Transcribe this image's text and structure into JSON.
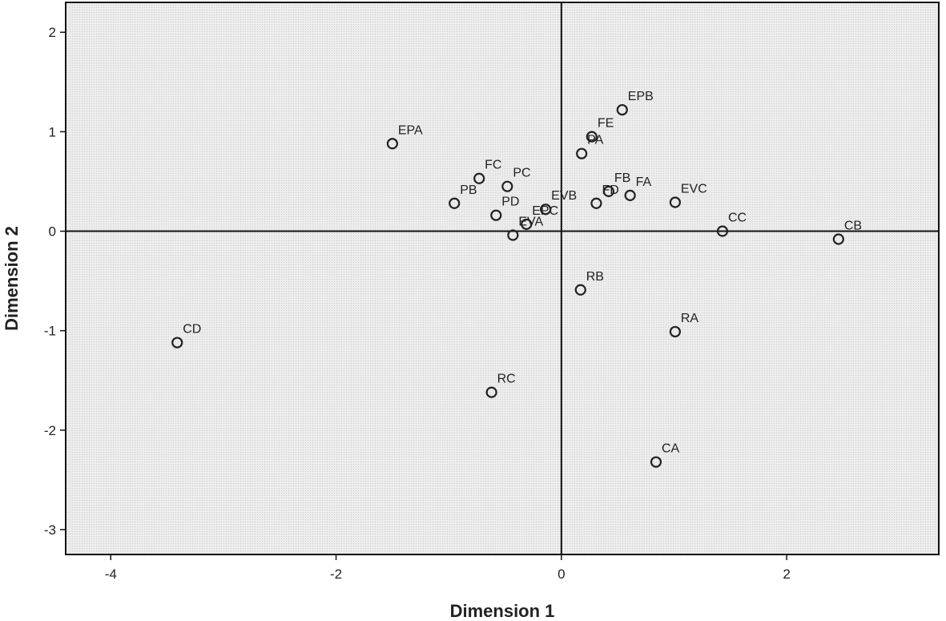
{
  "chart_data": {
    "type": "scatter",
    "title": "",
    "xlabel": "Dimension 1",
    "ylabel": "Dimension 2",
    "xlim": [
      -4.4,
      3.35
    ],
    "ylim": [
      -3.25,
      2.3
    ],
    "xticks": [
      -4,
      -2,
      0,
      2
    ],
    "yticks": [
      2,
      1,
      0,
      -1,
      -2,
      -3
    ],
    "grid": false,
    "reference_lines": {
      "x": 0,
      "y": 0
    },
    "colors": {
      "plot_background": "#e8e8e8",
      "marker": "#222222",
      "axes": "#111111"
    },
    "points": [
      {
        "label": "EPB",
        "x": 0.54,
        "y": 1.22
      },
      {
        "label": "FE",
        "x": 0.27,
        "y": 0.95
      },
      {
        "label": "EPA",
        "x": -1.5,
        "y": 0.88
      },
      {
        "label": "PA",
        "x": 0.18,
        "y": 0.78
      },
      {
        "label": "FC",
        "x": -0.73,
        "y": 0.53
      },
      {
        "label": "PC",
        "x": -0.48,
        "y": 0.45
      },
      {
        "label": "FB",
        "x": 0.42,
        "y": 0.4
      },
      {
        "label": "FA",
        "x": 0.61,
        "y": 0.36
      },
      {
        "label": "PB",
        "x": -0.95,
        "y": 0.28
      },
      {
        "label": "EVC",
        "x": 1.01,
        "y": 0.29
      },
      {
        "label": "FD",
        "x": 0.31,
        "y": 0.28
      },
      {
        "label": "EVB",
        "x": -0.14,
        "y": 0.22
      },
      {
        "label": "PD",
        "x": -0.58,
        "y": 0.16
      },
      {
        "label": "EPC",
        "x": -0.31,
        "y": 0.07
      },
      {
        "label": "EVA",
        "x": -0.43,
        "y": -0.04
      },
      {
        "label": "CC",
        "x": 1.43,
        "y": 0.0
      },
      {
        "label": "CB",
        "x": 2.46,
        "y": -0.08
      },
      {
        "label": "RB",
        "x": 0.17,
        "y": -0.59
      },
      {
        "label": "RA",
        "x": 1.01,
        "y": -1.01
      },
      {
        "label": "CD",
        "x": -3.41,
        "y": -1.12
      },
      {
        "label": "RC",
        "x": -0.62,
        "y": -1.62
      },
      {
        "label": "CA",
        "x": 0.84,
        "y": -2.32
      }
    ]
  }
}
